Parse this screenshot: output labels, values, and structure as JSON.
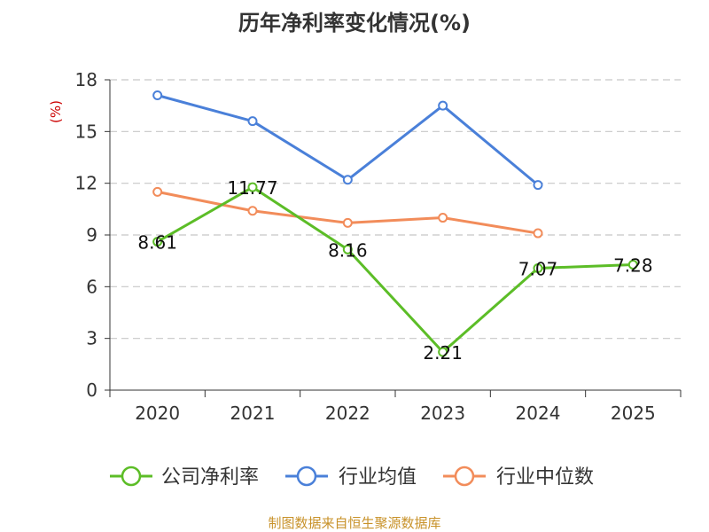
{
  "chart_data": {
    "type": "line",
    "title": "历年净利率变化情况(%)",
    "ylabel": "(%)",
    "xlabel": "",
    "categories": [
      "2020",
      "2021",
      "2022",
      "2023",
      "2024",
      "2025"
    ],
    "yticks": [
      "0",
      "3",
      "6",
      "9",
      "12",
      "15",
      "18"
    ],
    "ylim": [
      0,
      18
    ],
    "grid": true,
    "legend_position": "bottom",
    "series": [
      {
        "name": "公司净利率",
        "color": "#5cbd27",
        "values": [
          8.61,
          11.77,
          8.16,
          2.21,
          7.07,
          7.28
        ],
        "labels": [
          "8.61",
          "11.77",
          "8.16",
          "2.21",
          "7.07",
          "7.28"
        ]
      },
      {
        "name": "行业均值",
        "color": "#4a80d9",
        "values": [
          17.1,
          15.6,
          12.2,
          16.5,
          11.9,
          null
        ]
      },
      {
        "name": "行业中位数",
        "color": "#f28c5a",
        "values": [
          11.5,
          10.4,
          9.7,
          10.0,
          9.1,
          null
        ]
      }
    ]
  },
  "footer": {
    "source": "制图数据来自恒生聚源数据库"
  }
}
